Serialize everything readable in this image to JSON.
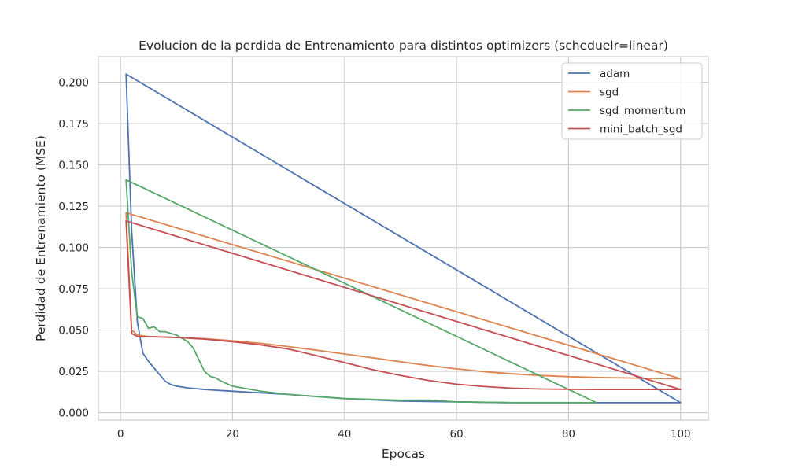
{
  "chart_data": {
    "type": "line",
    "title": "Evolucion de la perdida de Entrenamiento para distintos optimizers (scheduelr=linear)",
    "xlabel": "Epocas",
    "ylabel": "Perdidad de Entrenamiento (MSE)",
    "xlim": [
      -3.95,
      104.95
    ],
    "ylim": [
      -0.0045,
      0.2155
    ],
    "xticks": [
      0,
      20,
      40,
      60,
      80,
      100
    ],
    "xtick_labels": [
      "0",
      "20",
      "40",
      "60",
      "80",
      "100"
    ],
    "yticks": [
      0.0,
      0.025,
      0.05,
      0.075,
      0.1,
      0.125,
      0.15,
      0.175,
      0.2
    ],
    "ytick_labels": [
      "0.000",
      "0.025",
      "0.050",
      "0.075",
      "0.100",
      "0.125",
      "0.150",
      "0.175",
      "0.200"
    ],
    "grid": true,
    "legend_position": "top-right",
    "series": [
      {
        "name": "adam",
        "color": "#4c72b0",
        "x": [
          1,
          2,
          3,
          4,
          5,
          6,
          7,
          8,
          9,
          10,
          12,
          15,
          20,
          25,
          30,
          40,
          50,
          60,
          70,
          80,
          90,
          100,
          1
        ],
        "y": [
          0.205,
          0.11,
          0.055,
          0.036,
          0.031,
          0.027,
          0.023,
          0.019,
          0.017,
          0.016,
          0.015,
          0.014,
          0.013,
          0.012,
          0.011,
          0.0085,
          0.007,
          0.0065,
          0.006,
          0.006,
          0.006,
          0.006,
          0.205
        ]
      },
      {
        "name": "sgd",
        "color": "#dd8452",
        "x": [
          1,
          2,
          3,
          5,
          10,
          15,
          20,
          25,
          30,
          35,
          40,
          45,
          50,
          55,
          60,
          65,
          70,
          75,
          80,
          85,
          90,
          95,
          100,
          1
        ],
        "y": [
          0.121,
          0.05,
          0.047,
          0.046,
          0.0455,
          0.0448,
          0.0435,
          0.042,
          0.04,
          0.0378,
          0.0355,
          0.0332,
          0.0308,
          0.0285,
          0.0265,
          0.0248,
          0.0235,
          0.0225,
          0.0218,
          0.0213,
          0.021,
          0.0207,
          0.0205,
          0.121
        ]
      },
      {
        "name": "sgd_momentum",
        "color": "#55a868",
        "x": [
          1,
          2,
          3,
          4,
          5,
          6,
          7,
          8,
          9,
          10,
          11,
          12,
          13,
          14,
          15,
          16,
          17,
          18,
          20,
          25,
          30,
          40,
          50,
          55,
          60,
          70,
          80,
          85,
          1
        ],
        "y": [
          0.141,
          0.085,
          0.058,
          0.057,
          0.051,
          0.052,
          0.049,
          0.049,
          0.048,
          0.047,
          0.045,
          0.043,
          0.039,
          0.032,
          0.025,
          0.022,
          0.021,
          0.019,
          0.016,
          0.013,
          0.011,
          0.0085,
          0.0075,
          0.0076,
          0.0065,
          0.006,
          0.006,
          0.006,
          0.141
        ]
      },
      {
        "name": "mini_batch_sgd",
        "color": "#c44e52",
        "x": [
          1,
          2,
          3,
          5,
          10,
          15,
          20,
          25,
          30,
          35,
          40,
          45,
          50,
          55,
          60,
          65,
          70,
          75,
          80,
          85,
          90,
          95,
          100,
          1
        ],
        "y": [
          0.116,
          0.048,
          0.046,
          0.046,
          0.0455,
          0.0445,
          0.043,
          0.041,
          0.0385,
          0.0345,
          0.0303,
          0.026,
          0.0225,
          0.0195,
          0.0172,
          0.0158,
          0.0148,
          0.0143,
          0.0141,
          0.014,
          0.014,
          0.014,
          0.014,
          0.116
        ]
      }
    ]
  }
}
